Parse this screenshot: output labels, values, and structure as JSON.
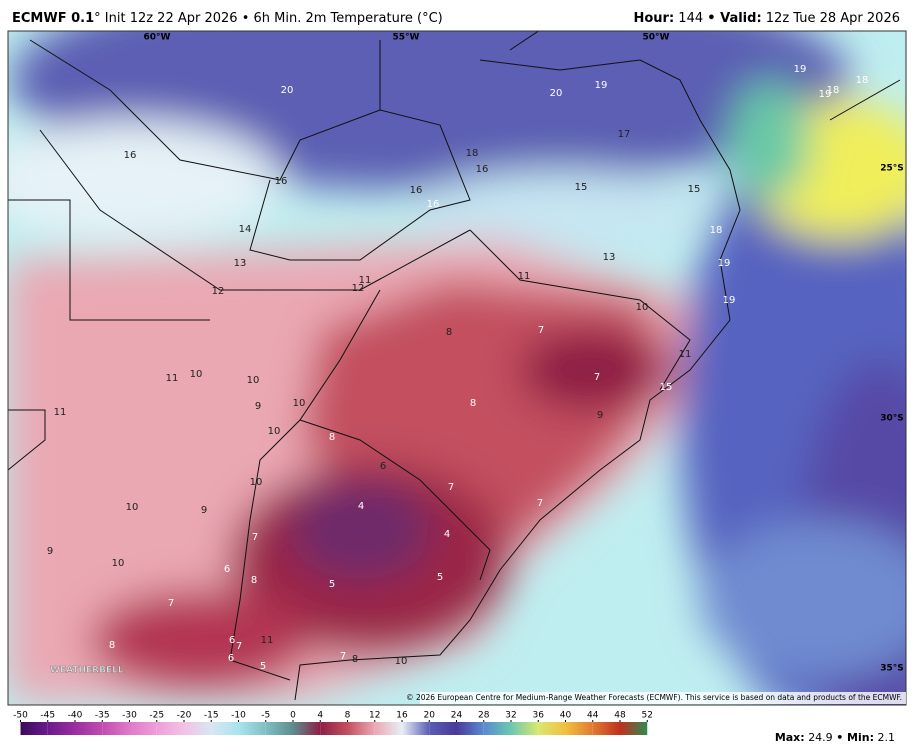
{
  "header": {
    "title_bold": "ECMWF 0.1",
    "title_rest": "° Init 12z 22 Apr 2026 • 6h Min. 2m Temperature (°C)",
    "hour_label": "Hour:",
    "hour": 144,
    "valid_label": "• Valid:",
    "valid": "12z Tue 28 Apr 2026"
  },
  "map": {
    "longitude_labels": [
      "60°W",
      "55°W",
      "50°W"
    ],
    "latitude_labels": [
      "25°S",
      "30°S",
      "35°S"
    ],
    "point_values": [
      20,
      20,
      19,
      19,
      19,
      18,
      18,
      17,
      16,
      18,
      16,
      16,
      16,
      16,
      15,
      15,
      18,
      14,
      13,
      13,
      19,
      12,
      11,
      12,
      11,
      19,
      10,
      8,
      7,
      11,
      15,
      11,
      10,
      10,
      9,
      10,
      8,
      7,
      9,
      11,
      10,
      8,
      6,
      10,
      7,
      7,
      10,
      9,
      4,
      4,
      7,
      9,
      10,
      6,
      8,
      5,
      5,
      7,
      8,
      6,
      7,
      11,
      6,
      5,
      7,
      8,
      10
    ]
  },
  "logo": "WEATHERBELL",
  "copyright": "© 2026 European Centre for Medium-Range Weather Forecasts (ECMWF). This service is based on data and products of the ECMWF.",
  "colorbar": {
    "ticks": [
      -50,
      -45,
      -40,
      -35,
      -30,
      -25,
      -20,
      -15,
      -10,
      -5,
      0,
      4,
      8,
      12,
      16,
      20,
      24,
      28,
      32,
      36,
      40,
      44,
      48,
      52
    ]
  },
  "stats": {
    "max_label": "Max:",
    "max": 24.9,
    "min_label": "• Min:",
    "min": 2.1
  }
}
